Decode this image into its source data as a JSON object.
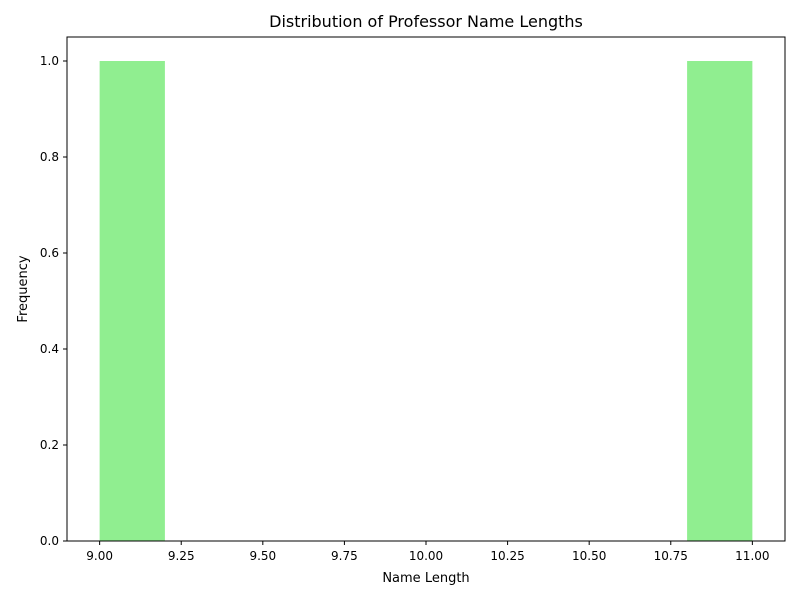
{
  "chart_data": {
    "type": "bar",
    "title": "Distribution of Professor Name Lengths",
    "xlabel": "Name Length",
    "ylabel": "Frequency",
    "bin_edges": [
      9.0,
      9.2,
      9.4,
      9.6,
      9.8,
      10.0,
      10.2,
      10.4,
      10.6,
      10.8,
      11.0
    ],
    "values": [
      1,
      0,
      0,
      0,
      0,
      0,
      0,
      0,
      0,
      1
    ],
    "xlim": [
      8.9,
      11.1
    ],
    "ylim": [
      0,
      1.05
    ],
    "x_ticks": [
      9.0,
      9.25,
      9.5,
      9.75,
      10.0,
      10.25,
      10.5,
      10.75,
      11.0
    ],
    "x_tick_labels": [
      "9.00",
      "9.25",
      "9.50",
      "9.75",
      "10.00",
      "10.25",
      "10.50",
      "10.75",
      "11.00"
    ],
    "y_ticks": [
      0.0,
      0.2,
      0.4,
      0.6,
      0.8,
      1.0
    ],
    "y_tick_labels": [
      "0.0",
      "0.2",
      "0.4",
      "0.6",
      "0.8",
      "1.0"
    ],
    "bar_color": "#90ee90",
    "grid": false
  }
}
